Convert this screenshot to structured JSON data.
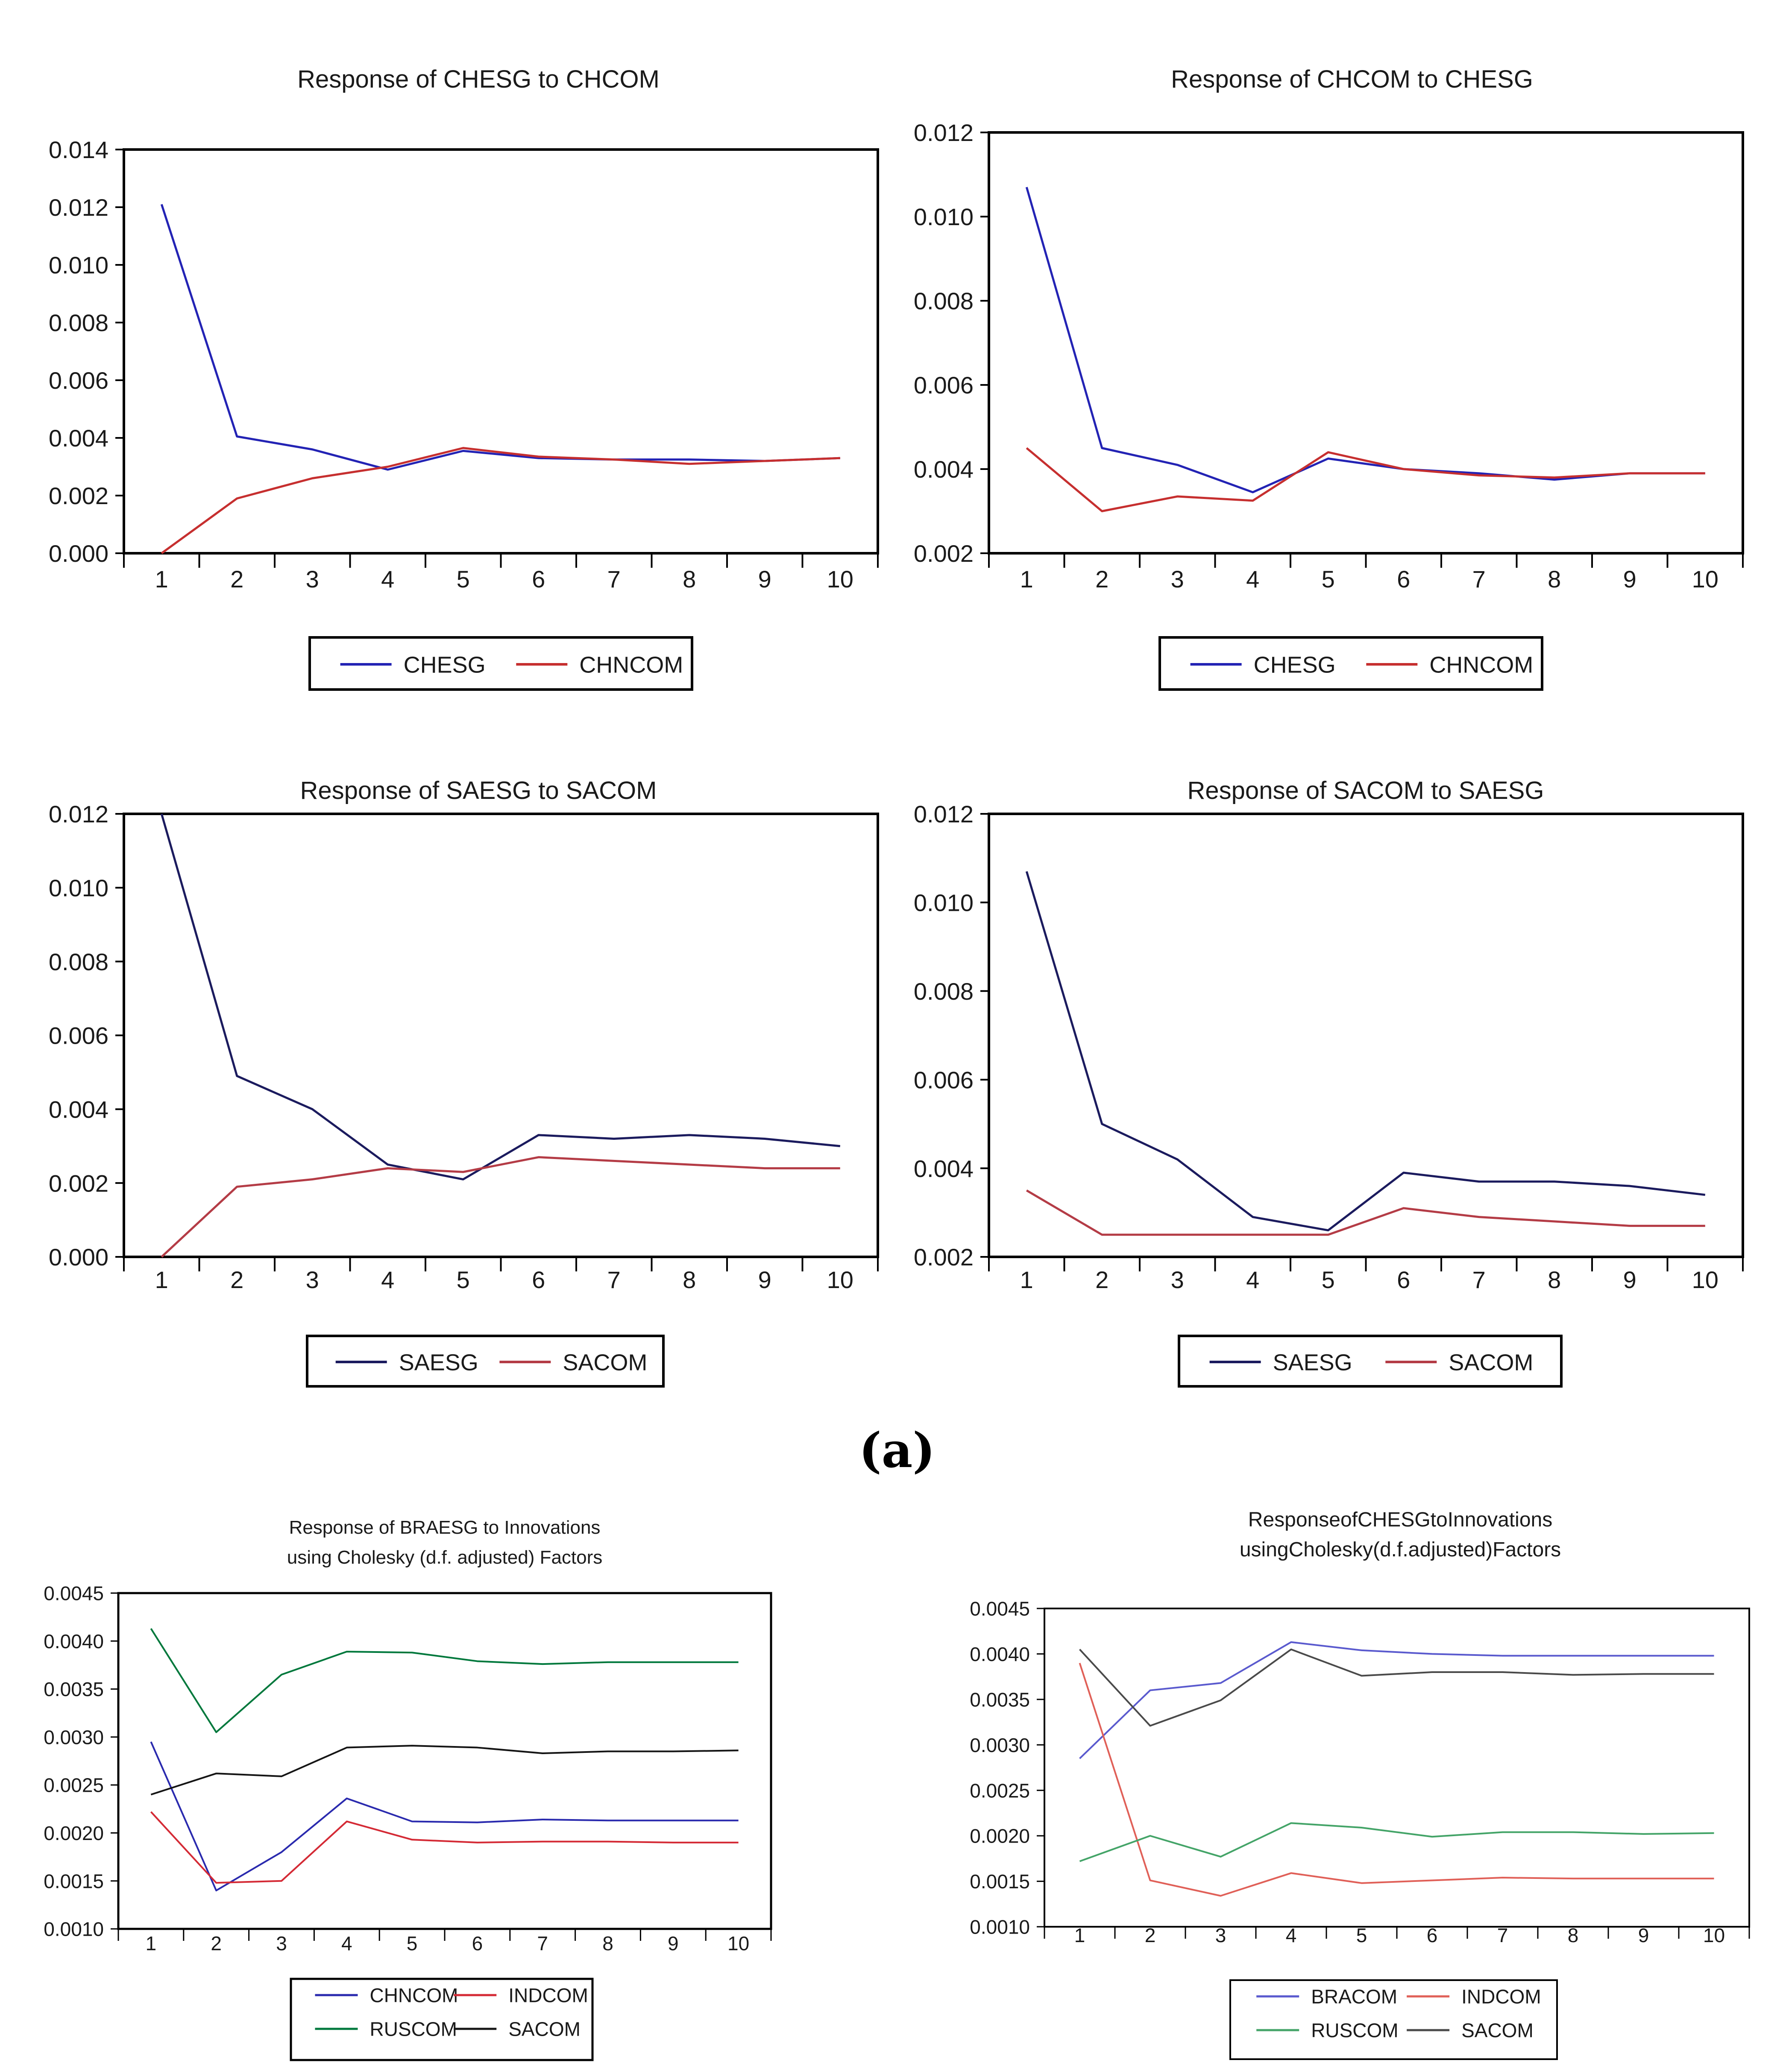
{
  "figure_label": "(a)",
  "chart_data": [
    {
      "type": "line",
      "title_lines": [
        "Response of CHESG to CHCOM"
      ],
      "x_tick_labels": [
        "1",
        "2",
        "3",
        "4",
        "5",
        "6",
        "7",
        "8",
        "9",
        "10"
      ],
      "ylim": [
        0.0,
        0.014
      ],
      "y_tick_values": [
        0.0,
        0.002,
        0.004,
        0.006,
        0.008,
        0.01,
        0.012,
        0.014
      ],
      "y_tick_labels": [
        "0.000",
        "0.002",
        "0.004",
        "0.006",
        "0.008",
        "0.010",
        "0.012",
        "0.014"
      ],
      "grid": false,
      "legend_position": "bottom",
      "series": [
        {
          "name": "CHESG",
          "color": "#2323b4",
          "values": [
            0.0121,
            0.00405,
            0.0036,
            0.0029,
            0.00355,
            0.0033,
            0.00325,
            0.00325,
            0.0032,
            0.0033
          ]
        },
        {
          "name": "CHNCOM",
          "color": "#c62f2f",
          "values": [
            0.0,
            0.0019,
            0.0026,
            0.003,
            0.00365,
            0.00335,
            0.00325,
            0.0031,
            0.0032,
            0.0033
          ]
        }
      ]
    },
    {
      "type": "line",
      "title_lines": [
        "Response of CHCOM to CHESG"
      ],
      "x_tick_labels": [
        "1",
        "2",
        "3",
        "4",
        "5",
        "6",
        "7",
        "8",
        "9",
        "10"
      ],
      "ylim": [
        0.002,
        0.012
      ],
      "y_tick_values": [
        0.002,
        0.004,
        0.006,
        0.008,
        0.01,
        0.012
      ],
      "y_tick_labels": [
        "0.002",
        "0.004",
        "0.006",
        "0.008",
        "0.010",
        "0.012"
      ],
      "grid": false,
      "legend_position": "bottom",
      "series": [
        {
          "name": "CHESG",
          "color": "#2323b4",
          "values": [
            0.0107,
            0.0045,
            0.0041,
            0.00345,
            0.00425,
            0.004,
            0.0039,
            0.00375,
            0.0039,
            0.0039
          ]
        },
        {
          "name": "CHNCOM",
          "color": "#c62f2f",
          "values": [
            0.0045,
            0.003,
            0.00335,
            0.00325,
            0.0044,
            0.004,
            0.00385,
            0.0038,
            0.0039,
            0.0039
          ]
        }
      ]
    },
    {
      "type": "line",
      "title_lines": [
        "Response of SAESG to SACOM"
      ],
      "x_tick_labels": [
        "1",
        "2",
        "3",
        "4",
        "5",
        "6",
        "7",
        "8",
        "9",
        "10"
      ],
      "ylim": [
        0.0,
        0.012
      ],
      "y_tick_values": [
        0.0,
        0.002,
        0.004,
        0.006,
        0.008,
        0.01,
        0.012
      ],
      "y_tick_labels": [
        "0.000",
        "0.002",
        "0.004",
        "0.006",
        "0.008",
        "0.010",
        "0.012"
      ],
      "grid": false,
      "legend_position": "bottom",
      "series": [
        {
          "name": "SAESG",
          "color": "#1b1b5e",
          "values": [
            0.012,
            0.0049,
            0.004,
            0.0025,
            0.0021,
            0.0033,
            0.0032,
            0.0033,
            0.0032,
            0.003
          ]
        },
        {
          "name": "SACOM",
          "color": "#b43c46",
          "values": [
            0.0,
            0.0019,
            0.0021,
            0.0024,
            0.0023,
            0.0027,
            0.0026,
            0.0025,
            0.0024,
            0.0024
          ]
        }
      ]
    },
    {
      "type": "line",
      "title_lines": [
        "Response of SACOM to SAESG"
      ],
      "x_tick_labels": [
        "1",
        "2",
        "3",
        "4",
        "5",
        "6",
        "7",
        "8",
        "9",
        "10"
      ],
      "ylim": [
        0.002,
        0.012
      ],
      "y_tick_values": [
        0.002,
        0.004,
        0.006,
        0.008,
        0.01,
        0.012
      ],
      "y_tick_labels": [
        "0.002",
        "0.004",
        "0.006",
        "0.008",
        "0.010",
        "0.012"
      ],
      "grid": false,
      "legend_position": "bottom",
      "series": [
        {
          "name": "SAESG",
          "color": "#1b1b5e",
          "values": [
            0.0107,
            0.005,
            0.0042,
            0.0029,
            0.0026,
            0.0039,
            0.0037,
            0.0037,
            0.0036,
            0.0034
          ]
        },
        {
          "name": "SACOM",
          "color": "#b43c46",
          "values": [
            0.0035,
            0.0025,
            0.0025,
            0.0025,
            0.0025,
            0.0031,
            0.0029,
            0.0028,
            0.0027,
            0.0027
          ]
        }
      ]
    },
    {
      "type": "line",
      "title_lines": [
        "Response of BRAESG to Innovations",
        "using Cholesky (d.f. adjusted) Factors"
      ],
      "x_tick_labels": [
        "1",
        "2",
        "3",
        "4",
        "5",
        "6",
        "7",
        "8",
        "9",
        "10"
      ],
      "ylim": [
        0.001,
        0.0045
      ],
      "y_tick_values": [
        0.001,
        0.0015,
        0.002,
        0.0025,
        0.003,
        0.0035,
        0.004,
        0.0045
      ],
      "y_tick_labels": [
        "0.0010",
        "0.0015",
        "0.0020",
        "0.0025",
        "0.0030",
        "0.0035",
        "0.0040",
        "0.0045"
      ],
      "grid": false,
      "legend_position": "bottom",
      "series": [
        {
          "name": "CHNCOM",
          "color": "#2a2aae",
          "values": [
            0.00295,
            0.0014,
            0.0018,
            0.00236,
            0.00212,
            0.00211,
            0.00214,
            0.00213,
            0.00213,
            0.00213
          ]
        },
        {
          "name": "INDCOM",
          "color": "#d42a35",
          "values": [
            0.00222,
            0.00148,
            0.0015,
            0.00212,
            0.00193,
            0.0019,
            0.00191,
            0.00191,
            0.0019,
            0.0019
          ]
        },
        {
          "name": "RUSCOM",
          "color": "#00783c",
          "values": [
            0.00413,
            0.00305,
            0.00365,
            0.00389,
            0.00388,
            0.00379,
            0.00376,
            0.00378,
            0.00378,
            0.00378
          ]
        },
        {
          "name": "SACOM",
          "color": "#151515",
          "values": [
            0.0024,
            0.00262,
            0.00259,
            0.00289,
            0.00291,
            0.00289,
            0.00283,
            0.00285,
            0.00285,
            0.00286
          ]
        }
      ]
    },
    {
      "type": "line",
      "title_lines": [
        "ResponseofCHESGtoInnovations",
        "usingCholesky(d.f.adjusted)Factors"
      ],
      "x_tick_labels": [
        "1",
        "2",
        "3",
        "4",
        "5",
        "6",
        "7",
        "8",
        "9",
        "10"
      ],
      "ylim": [
        0.001,
        0.0045
      ],
      "y_tick_values": [
        0.001,
        0.0015,
        0.002,
        0.0025,
        0.003,
        0.0035,
        0.004,
        0.0045
      ],
      "y_tick_labels": [
        "0.0010",
        "0.0015",
        "0.0020",
        "0.0025",
        "0.0030",
        "0.0035",
        "0.0040",
        "0.0045"
      ],
      "grid": false,
      "legend_position": "bottom",
      "series": [
        {
          "name": "BRACOM",
          "color": "#5a5ace",
          "values": [
            0.00285,
            0.0036,
            0.00368,
            0.00413,
            0.00404,
            0.004,
            0.00398,
            0.00398,
            0.00398,
            0.00398
          ]
        },
        {
          "name": "INDCOM",
          "color": "#e06058",
          "values": [
            0.0039,
            0.00151,
            0.00134,
            0.00159,
            0.00148,
            0.00151,
            0.00154,
            0.00153,
            0.00153,
            0.00153
          ]
        },
        {
          "name": "RUSCOM",
          "color": "#44a468",
          "values": [
            0.00172,
            0.002,
            0.00177,
            0.00214,
            0.00209,
            0.00199,
            0.00204,
            0.00204,
            0.00202,
            0.00203
          ]
        },
        {
          "name": "SACOM",
          "color": "#4a4a4a",
          "values": [
            0.00405,
            0.00321,
            0.00349,
            0.00405,
            0.00376,
            0.0038,
            0.0038,
            0.00377,
            0.00378,
            0.00378
          ]
        }
      ]
    }
  ]
}
